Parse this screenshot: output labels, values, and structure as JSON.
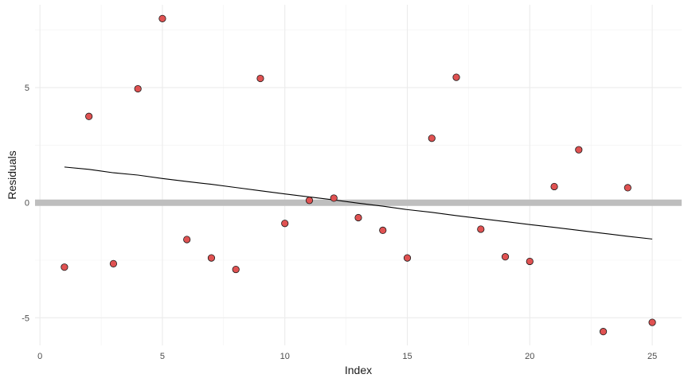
{
  "chart_data": {
    "type": "scatter",
    "title": "",
    "xlabel": "Index",
    "ylabel": "Residuals",
    "xlim": [
      -0.2,
      26.2
    ],
    "ylim": [
      -6.2,
      8.6
    ],
    "x_ticks": [
      0,
      5,
      10,
      15,
      20,
      25
    ],
    "x_tick_labels": [
      "0",
      "5",
      "10",
      "15",
      "20",
      "25"
    ],
    "y_ticks": [
      -5,
      0,
      5
    ],
    "y_tick_labels": [
      "-5",
      "0",
      "5"
    ],
    "grid": true,
    "reference_line": {
      "y": 0,
      "color": "#bebebe"
    },
    "points": {
      "color": "#e05252",
      "x": [
        1,
        2,
        3,
        4,
        5,
        6,
        7,
        8,
        9,
        10,
        11,
        12,
        13,
        14,
        15,
        16,
        17,
        18,
        19,
        20,
        21,
        22,
        23,
        24,
        25
      ],
      "y": [
        -2.8,
        3.75,
        -2.65,
        4.95,
        8.0,
        -1.6,
        -2.4,
        -2.9,
        5.4,
        -0.9,
        0.1,
        0.2,
        -0.65,
        -1.2,
        -2.4,
        2.8,
        5.45,
        -1.15,
        -2.35,
        -2.55,
        0.7,
        2.3,
        -5.6,
        0.65,
        -5.2
      ]
    },
    "trend_line": {
      "color": "#000000",
      "x": [
        1,
        2,
        3,
        4,
        5,
        6,
        7,
        8,
        9,
        10,
        11,
        12,
        13,
        14,
        15,
        16,
        17,
        18,
        19,
        20,
        21,
        22,
        23,
        24,
        25
      ],
      "y": [
        1.55,
        1.45,
        1.3,
        1.2,
        1.05,
        0.92,
        0.8,
        0.66,
        0.52,
        0.38,
        0.25,
        0.12,
        -0.02,
        -0.15,
        -0.3,
        -0.42,
        -0.56,
        -0.69,
        -0.82,
        -0.95,
        -1.07,
        -1.2,
        -1.33,
        -1.46,
        -1.58
      ]
    }
  }
}
